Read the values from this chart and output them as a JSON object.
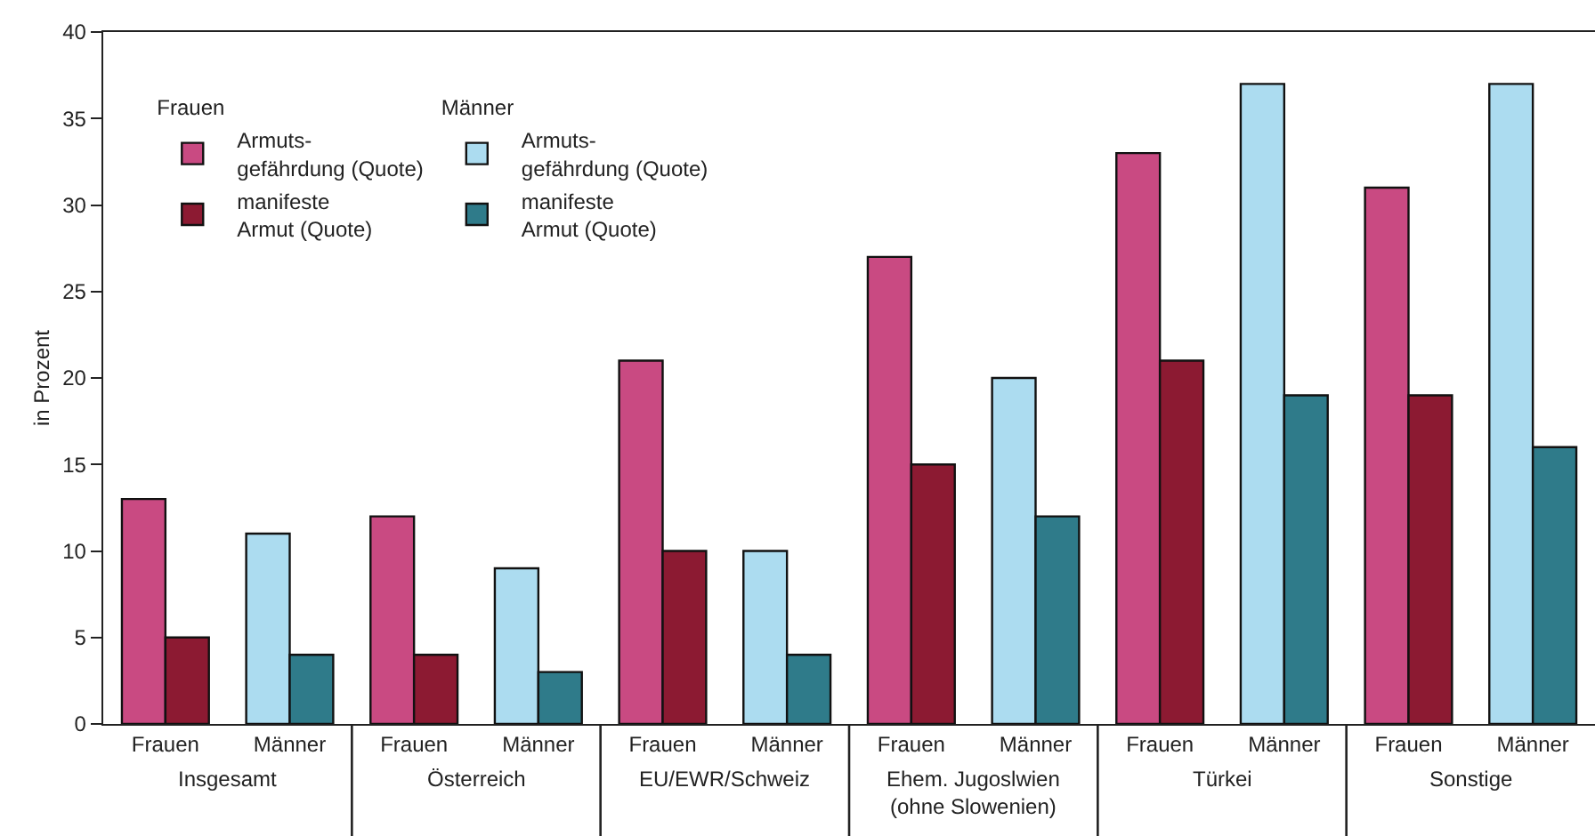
{
  "chart_data": {
    "type": "bar",
    "ylabel": "in Prozent",
    "categories": [
      "Frauen",
      "Männer",
      "Frauen",
      "Männer",
      "Frauen",
      "Männer",
      "Frauen",
      "Männer",
      "Frauen",
      "Männer",
      "Frauen",
      "Männer"
    ],
    "annotations": [
      "Insgesamt",
      "Österreich",
      "EU/EWR/Schweiz",
      "Ehem. Jugoslwien\n(ohne Slowenien)",
      "Türkei",
      "Sonstige"
    ],
    "series": [
      {
        "name": "Armuts-\ngefährdung (Quote)",
        "color": "#c94a82",
        "values": [
          13,
          null,
          12,
          null,
          21,
          null,
          27,
          null,
          33,
          null,
          31,
          null
        ]
      },
      {
        "name": "manifeste\nArmut (Quote)",
        "color": "#8c1a32",
        "values": [
          5,
          null,
          4,
          null,
          10,
          null,
          15,
          null,
          21,
          null,
          19,
          null
        ]
      },
      {
        "name": "Armuts-\ngefährdung (Quote)",
        "color": "#acdcf0",
        "values": [
          null,
          11,
          null,
          9,
          null,
          10,
          null,
          20,
          null,
          37,
          null,
          37
        ]
      },
      {
        "name": "manifeste\nArmut (Quote)",
        "color": "#2f7b8a",
        "values": [
          null,
          4,
          null,
          3,
          null,
          4,
          null,
          12,
          null,
          19,
          null,
          16
        ]
      }
    ],
    "ylim": [
      0,
      40
    ],
    "yticks": [
      0,
      5,
      10,
      15,
      20,
      25,
      30,
      35,
      40
    ],
    "grid": false,
    "legend": "top left"
  }
}
